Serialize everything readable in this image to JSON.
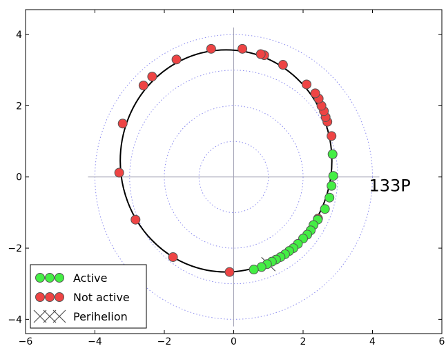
{
  "chart_data": {
    "type": "scatter",
    "xlim": [
      -6,
      6
    ],
    "ylim": [
      -4.4,
      4.7
    ],
    "x_ticks": [
      -6,
      -4,
      -2,
      0,
      2,
      4,
      6
    ],
    "y_ticks": [
      -4,
      -2,
      0,
      2,
      4
    ],
    "x_tick_labels": [
      "−6",
      "−4",
      "−2",
      "0",
      "2",
      "4",
      "6"
    ],
    "y_tick_labels": [
      "−4",
      "−2",
      "0",
      "2",
      "4"
    ],
    "annotation": "133P",
    "annotation_pos": [
      3.9,
      -0.4
    ],
    "axes_lines": {
      "x_range": [
        -4.2,
        4.2
      ],
      "y_range": [
        -4.2,
        4.2
      ],
      "color": "#a0a0b4"
    },
    "reference_circles": {
      "radii": [
        1,
        2,
        3,
        4
      ],
      "color": "#8888ee",
      "style": "dotted"
    },
    "orbit": {
      "center": [
        -0.22,
        0.45
      ],
      "a": 3.05,
      "b": 3.12,
      "color": "#000000"
    },
    "legend": {
      "position": "lower-left"
    },
    "series": [
      {
        "name": "Active",
        "color": "#44ee44",
        "marker": "circle",
        "points": [
          [
            2.85,
            0.64
          ],
          [
            2.87,
            0.03
          ],
          [
            2.82,
            -0.25
          ],
          [
            2.76,
            -0.58
          ],
          [
            2.63,
            -0.9
          ],
          [
            2.42,
            -1.2
          ],
          [
            2.3,
            -1.35
          ],
          [
            2.22,
            -1.5
          ],
          [
            2.12,
            -1.62
          ],
          [
            2.0,
            -1.73
          ],
          [
            1.85,
            -1.88
          ],
          [
            1.72,
            -2.0
          ],
          [
            1.6,
            -2.08
          ],
          [
            1.48,
            -2.17
          ],
          [
            1.35,
            -2.25
          ],
          [
            1.22,
            -2.32
          ],
          [
            1.1,
            -2.38
          ],
          [
            0.96,
            -2.45
          ],
          [
            0.8,
            -2.53
          ],
          [
            0.58,
            -2.6
          ]
        ]
      },
      {
        "name": "Not active",
        "color": "#ee4444",
        "marker": "circle",
        "points": [
          [
            2.82,
            1.15
          ],
          [
            2.7,
            1.55
          ],
          [
            2.65,
            1.68
          ],
          [
            2.6,
            1.85
          ],
          [
            2.53,
            2.0
          ],
          [
            2.45,
            2.2
          ],
          [
            2.35,
            2.35
          ],
          [
            2.1,
            2.6
          ],
          [
            1.42,
            3.15
          ],
          [
            0.88,
            3.42
          ],
          [
            0.78,
            3.45
          ],
          [
            0.25,
            3.6
          ],
          [
            -0.65,
            3.6
          ],
          [
            -1.65,
            3.3
          ],
          [
            -2.35,
            2.82
          ],
          [
            -2.6,
            2.57
          ],
          [
            -3.2,
            1.5
          ],
          [
            -3.3,
            0.12
          ],
          [
            -2.83,
            -1.2
          ],
          [
            -1.75,
            -2.25
          ],
          [
            -0.12,
            -2.67
          ],
          [
            2.43,
            -1.17
          ]
        ]
      },
      {
        "name": "Perihelion",
        "color": "#555555",
        "marker": "x",
        "points": [
          [
            1.0,
            -2.45
          ]
        ]
      }
    ]
  }
}
